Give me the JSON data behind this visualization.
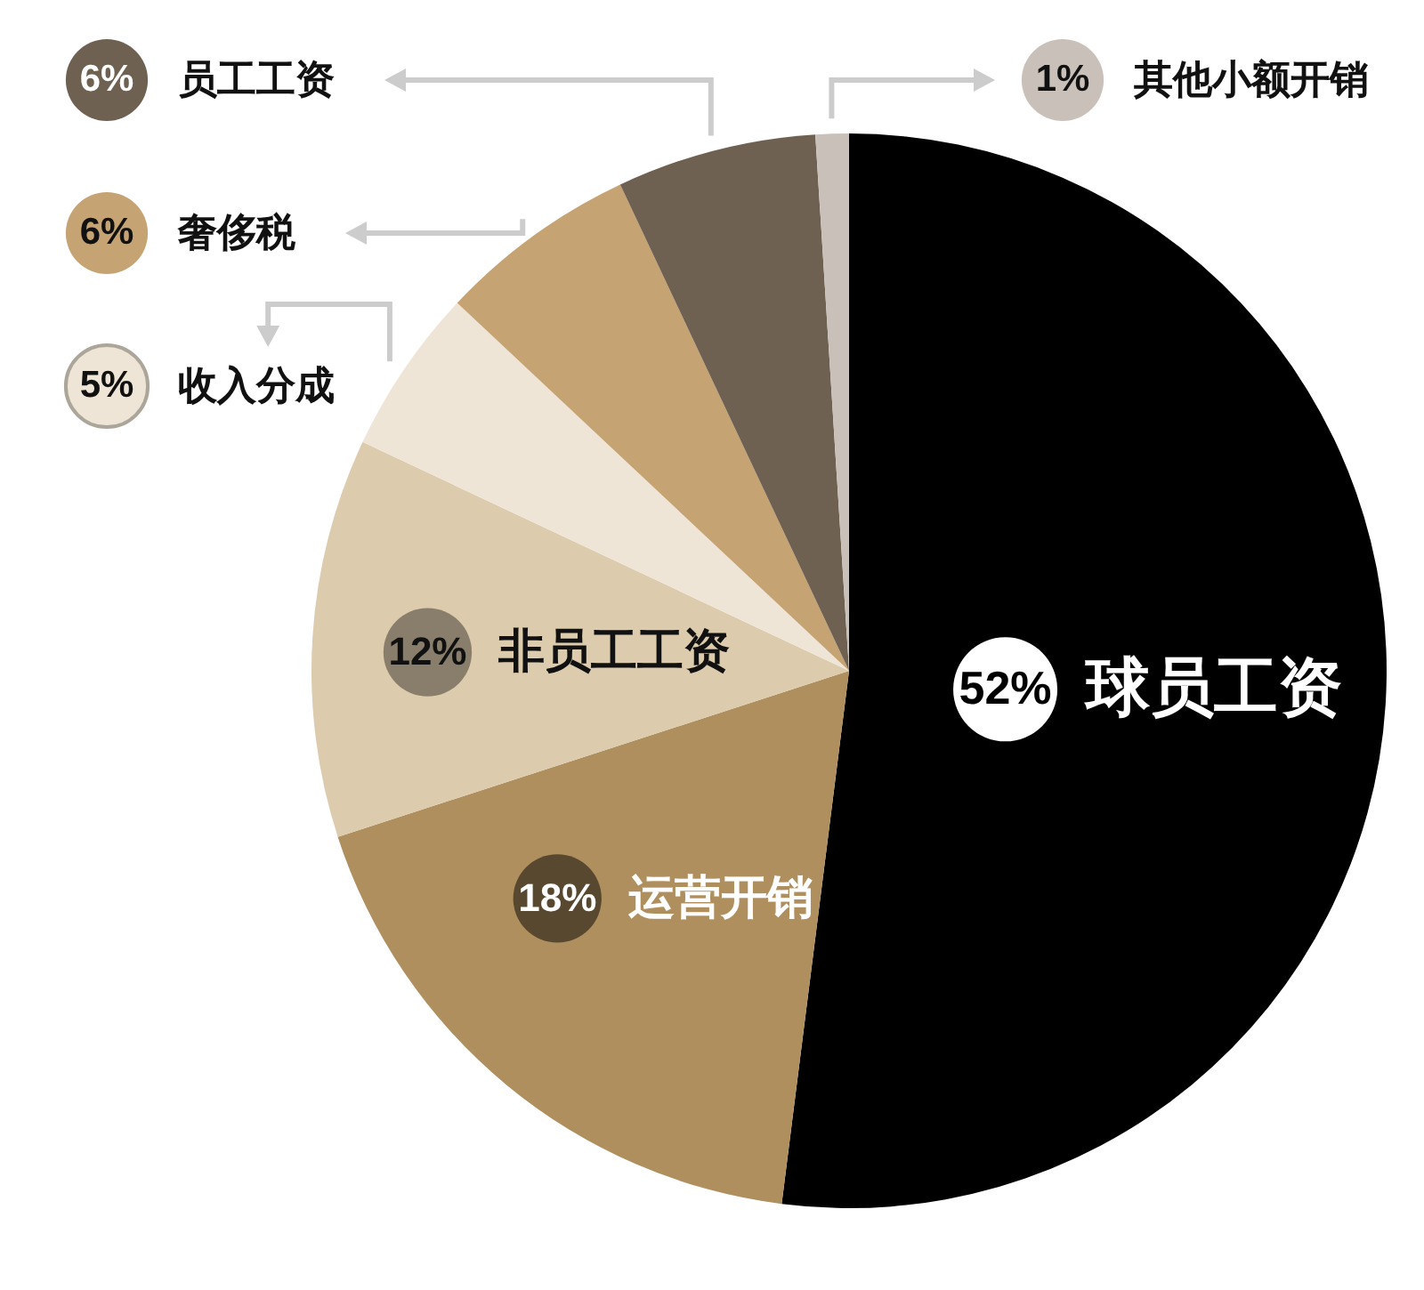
{
  "chart_data": {
    "type": "pie",
    "categories": [
      "球员工资",
      "运营开销",
      "非员工工资",
      "收入分成",
      "奢侈税",
      "员工工资",
      "其他小额开销"
    ],
    "values": [
      52,
      18,
      12,
      5,
      6,
      6,
      1
    ],
    "colors": [
      "#000000",
      "#b08f5e",
      "#dccbad",
      "#efe5d6",
      "#c6a373",
      "#6f6151",
      "#c9c1b9"
    ],
    "value_labels": [
      "52%",
      "18%",
      "12%",
      "5%",
      "6%",
      "6%",
      "1%"
    ],
    "legend": "top"
  }
}
